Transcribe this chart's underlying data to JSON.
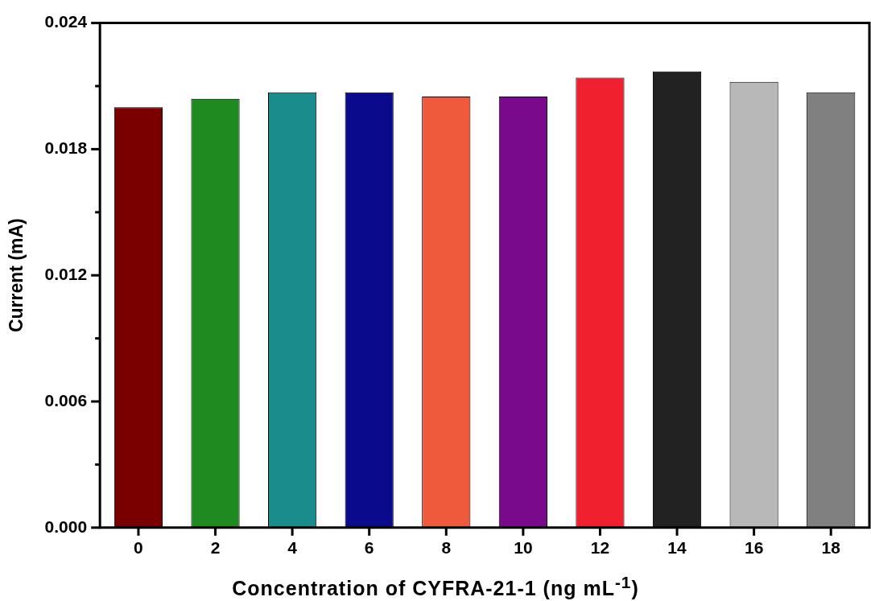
{
  "chart_data": {
    "type": "bar",
    "xlabel": "Concentration of CYFRA-21-1 (ng mL$^{-1}$)",
    "ylabel": "Current (mA)",
    "categories": [
      "0",
      "2",
      "4",
      "6",
      "8",
      "10",
      "12",
      "14",
      "16",
      "18"
    ],
    "values": [
      0.02,
      0.0204,
      0.0207,
      0.0207,
      0.0205,
      0.0205,
      0.0214,
      0.0217,
      0.0212,
      0.0207
    ],
    "colors": [
      "#7a0000",
      "#1f8a1f",
      "#1a8c8c",
      "#0a0a8c",
      "#f05a3c",
      "#7a0a8c",
      "#f0202e",
      "#222222",
      "#b8b8b8",
      "#808080"
    ],
    "ylim": [
      0,
      0.024
    ],
    "yticks": [
      {
        "value": 0,
        "label": "0.000"
      },
      {
        "value": 0.003,
        "label": null
      },
      {
        "value": 0.006,
        "label": "0.006"
      },
      {
        "value": 0.009,
        "label": null
      },
      {
        "value": 0.012,
        "label": "0.012"
      },
      {
        "value": 0.015,
        "label": null
      },
      {
        "value": 0.018,
        "label": "0.018"
      },
      {
        "value": 0.021,
        "label": null
      },
      {
        "value": 0.024,
        "label": "0.024"
      }
    ],
    "grid": false,
    "legend": false
  }
}
